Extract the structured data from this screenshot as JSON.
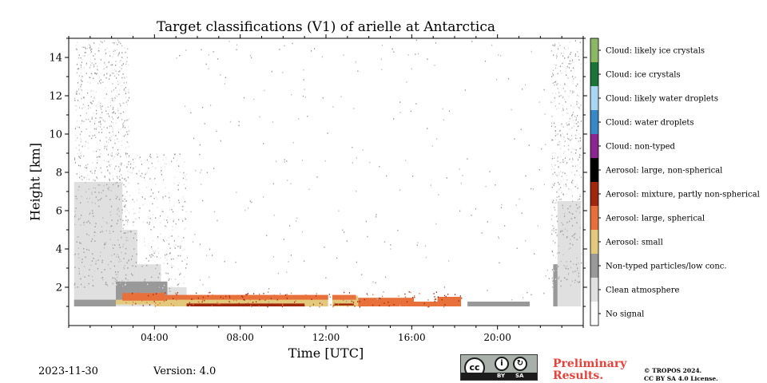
{
  "chart_data": {
    "type": "heatmap",
    "title": "Target classifications (V1) of arielle at Antarctica",
    "xlabel": "Time [UTC]",
    "ylabel": "Height [km]",
    "xlim_hours": [
      0,
      24
    ],
    "ylim_km": [
      0,
      15
    ],
    "x_ticks": [
      {
        "value": 4,
        "label": "04:00"
      },
      {
        "value": 8,
        "label": "08:00"
      },
      {
        "value": 12,
        "label": "12:00"
      },
      {
        "value": 16,
        "label": "16:00"
      },
      {
        "value": 20,
        "label": "20:00"
      }
    ],
    "y_ticks": [
      {
        "value": 2,
        "label": "2"
      },
      {
        "value": 4,
        "label": "4"
      },
      {
        "value": 6,
        "label": "6"
      },
      {
        "value": 8,
        "label": "8"
      },
      {
        "value": 10,
        "label": "10"
      },
      {
        "value": 12,
        "label": "12"
      },
      {
        "value": 14,
        "label": "14"
      }
    ],
    "classes": [
      {
        "label": "No signal",
        "color": "#ffffff"
      },
      {
        "label": "Clean atmosphere",
        "color": "#e0e0e0"
      },
      {
        "label": "Non-typed particles/low conc.",
        "color": "#999999"
      },
      {
        "label": "Aerosol: small",
        "color": "#e2c97c"
      },
      {
        "label": "Aerosol: large, spherical",
        "color": "#e8703a"
      },
      {
        "label": "Aerosol: mixture, partly non-spherical",
        "color": "#a0260c"
      },
      {
        "label": "Aerosol: large, non-spherical",
        "color": "#000000"
      },
      {
        "label": "Cloud: non-typed",
        "color": "#8a2591"
      },
      {
        "label": "Cloud: water droplets",
        "color": "#3a87c7"
      },
      {
        "label": "Cloud: likely water droplets",
        "color": "#a9d6f3"
      },
      {
        "label": "Cloud: ice crystals",
        "color": "#1a7337"
      },
      {
        "label": "Cloud: likely ice crystals",
        "color": "#8cb866"
      }
    ],
    "regions": [
      {
        "class": "Clean atmosphere",
        "t_start": 0.25,
        "t_end": 2.5,
        "h_bottom": 1.0,
        "h_top": 7.5
      },
      {
        "class": "Clean atmosphere",
        "t_start": 2.5,
        "t_end": 3.2,
        "h_bottom": 1.0,
        "h_top": 5.0
      },
      {
        "class": "Clean atmosphere",
        "t_start": 3.2,
        "t_end": 4.3,
        "h_bottom": 1.0,
        "h_top": 3.2
      },
      {
        "class": "Clean atmosphere",
        "t_start": 4.3,
        "t_end": 5.5,
        "h_bottom": 1.0,
        "h_top": 2.0
      },
      {
        "class": "Clean atmosphere",
        "t_start": 22.8,
        "t_end": 23.9,
        "h_bottom": 1.0,
        "h_top": 6.5
      },
      {
        "class": "Non-typed particles/low conc.",
        "t_start": 0.25,
        "t_end": 2.2,
        "h_bottom": 1.0,
        "h_top": 1.35
      },
      {
        "class": "Non-typed particles/low conc.",
        "t_start": 2.2,
        "t_end": 4.6,
        "h_bottom": 1.3,
        "h_top": 2.3
      },
      {
        "class": "Non-typed particles/low conc.",
        "t_start": 18.6,
        "t_end": 21.5,
        "h_bottom": 1.0,
        "h_top": 1.25
      },
      {
        "class": "Non-typed particles/low conc.",
        "t_start": 22.6,
        "t_end": 22.8,
        "h_bottom": 1.0,
        "h_top": 3.2
      },
      {
        "class": "Aerosol: small",
        "t_start": 2.2,
        "t_end": 4.0,
        "h_bottom": 1.1,
        "h_top": 1.35
      },
      {
        "class": "Aerosol: small",
        "t_start": 4.0,
        "t_end": 12.1,
        "h_bottom": 1.0,
        "h_top": 1.5
      },
      {
        "class": "Aerosol: small",
        "t_start": 12.3,
        "t_end": 13.5,
        "h_bottom": 1.0,
        "h_top": 1.55
      },
      {
        "class": "Aerosol: large, spherical",
        "t_start": 2.5,
        "t_end": 4.5,
        "h_bottom": 1.3,
        "h_top": 1.7
      },
      {
        "class": "Aerosol: large, spherical",
        "t_start": 4.5,
        "t_end": 12.1,
        "h_bottom": 1.35,
        "h_top": 1.6
      },
      {
        "class": "Aerosol: large, spherical",
        "t_start": 12.3,
        "t_end": 13.4,
        "h_bottom": 1.35,
        "h_top": 1.6
      },
      {
        "class": "Aerosol: large, spherical",
        "t_start": 13.5,
        "t_end": 16.1,
        "h_bottom": 1.0,
        "h_top": 1.45
      },
      {
        "class": "Aerosol: large, spherical",
        "t_start": 16.1,
        "t_end": 17.2,
        "h_bottom": 1.0,
        "h_top": 1.25
      },
      {
        "class": "Aerosol: large, spherical",
        "t_start": 17.2,
        "t_end": 18.3,
        "h_bottom": 1.0,
        "h_top": 1.5
      },
      {
        "class": "Aerosol: mixture, partly non-spherical",
        "t_start": 5.5,
        "t_end": 11.0,
        "h_bottom": 1.0,
        "h_top": 1.15
      },
      {
        "class": "Aerosol: mixture, partly non-spherical",
        "t_start": 12.4,
        "t_end": 13.3,
        "h_bottom": 1.05,
        "h_top": 1.15
      }
    ]
  },
  "footer": {
    "date": "2023-11-30",
    "version": "Version: 4.0",
    "preliminary_line1": "Preliminary",
    "preliminary_line2": "Results.",
    "license_line1": "© TROPOS 2024.",
    "license_line2": "CC BY SA 4.0 License.",
    "cc_label": "cc",
    "cc_by": "BY",
    "cc_sa": "SA"
  }
}
